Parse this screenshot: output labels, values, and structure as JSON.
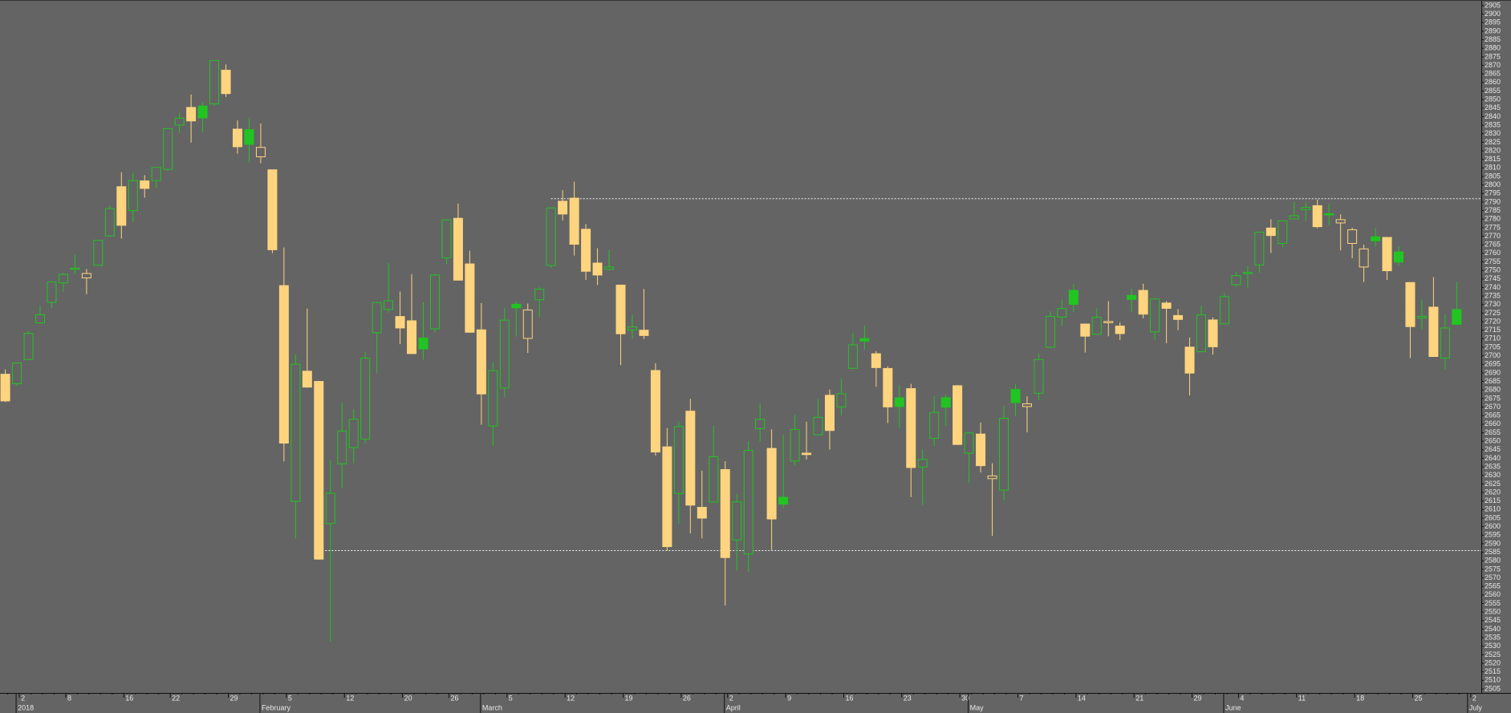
{
  "chart_data": {
    "type": "candlestick",
    "categories": [
      null,
      "2",
      null,
      null,
      null,
      "8",
      null,
      null,
      null,
      null,
      "16",
      null,
      null,
      null,
      "22",
      null,
      null,
      null,
      null,
      "29",
      null,
      null,
      null,
      null,
      "5",
      null,
      null,
      null,
      null,
      "12",
      null,
      null,
      null,
      null,
      "20",
      null,
      null,
      null,
      "26",
      null,
      null,
      null,
      null,
      "5",
      null,
      null,
      null,
      null,
      "12",
      null,
      null,
      null,
      null,
      "19",
      null,
      null,
      null,
      null,
      "26",
      null,
      null,
      null,
      "2",
      null,
      null,
      null,
      null,
      "9",
      null,
      null,
      null,
      null,
      "16",
      null,
      null,
      null,
      null,
      "23",
      null,
      null,
      null,
      null,
      "30",
      null,
      null,
      null,
      null,
      "7",
      null,
      null,
      null,
      null,
      "14",
      null,
      null,
      null,
      null,
      "21",
      null,
      null,
      null,
      null,
      "29",
      null,
      null,
      null,
      "4",
      null,
      null,
      null,
      null,
      "11",
      null,
      null,
      null,
      null,
      "18",
      null,
      null,
      null,
      null,
      "25",
      null,
      null,
      null,
      null,
      "2"
    ],
    "months": [
      {
        "label": "2018",
        "index": 1
      },
      {
        "label": "February",
        "index": 22
      },
      {
        "label": "March",
        "index": 41
      },
      {
        "label": "April",
        "index": 62
      },
      {
        "label": "May",
        "index": 83
      },
      {
        "label": "June",
        "index": 105
      },
      {
        "label": "July",
        "index": 126
      }
    ],
    "open": [
      2689.2,
      2683.7,
      2697.8,
      2719.3,
      2731.3,
      2742.7,
      2751.1,
      2745.6,
      2753.0,
      2770.2,
      2799.0,
      2785.0,
      2802.4,
      2802.6,
      2809.2,
      2835.1,
      2845.4,
      2846.2,
      2847.5,
      2867.2,
      2832.7,
      2832.4,
      2816.5,
      2808.9,
      2741.1,
      2614.8,
      2691.0,
      2685.0,
      2601.8,
      2636.8,
      2646.3,
      2651.2,
      2713.5,
      2727.1,
      2723.0,
      2720.5,
      2710.4,
      2715.8,
      2757.4,
      2780.5,
      2753.8,
      2715.2,
      2658.9,
      2681.1,
      2730.2,
      2710.2,
      2732.8,
      2752.9,
      2790.5,
      2792.3,
      2774.1,
      2754.3,
      2750.6,
      2741.4,
      2715.1,
      2715.0,
      2691.4,
      2646.7,
      2619.4,
      2667.6,
      2611.3,
      2614.4,
      2633.4,
      2592.2,
      2584.0,
      2657.4,
      2645.8,
      2617.2,
      2638.4,
      2643.0,
      2653.8,
      2676.9,
      2670.1,
      2692.7,
      2710.1,
      2701.2,
      2692.6,
      2675.4,
      2680.8,
      2634.9,
      2651.7,
      2675.5,
      2682.5,
      2643.0,
      2654.2,
      2628.1,
      2621.4,
      2680.3,
      2670.3,
      2678.1,
      2705.0,
      2722.7,
      2738.3,
      2718.6,
      2712.6,
      2719.7,
      2717.4,
      2735.4,
      2738.3,
      2714.0,
      2730.9,
      2723.6,
      2705.1,
      2702.4,
      2721.0,
      2718.7,
      2741.7,
      2748.5,
      2753.2,
      2774.8,
      2765.8,
      2780.2,
      2785.6,
      2787.9,
      2783.2,
      2777.8,
      2765.8,
      2752.0,
      2769.7,
      2769.3,
      2760.8,
      2742.9,
      2722.1,
      2728.5,
      2698.7,
      2727.1,
      null
    ],
    "high": [
      2692.1,
      2695.9,
      2714.4,
      2729.3,
      2743.5,
      2748.5,
      2759.1,
      2750.8,
      2767.6,
      2787.9,
      2807.5,
      2807.0,
      2805.8,
      2810.3,
      2833.0,
      2842.2,
      2853.0,
      2848.6,
      2872.9,
      2870.6,
      2837.8,
      2839.3,
      2836.0,
      2808.9,
      2763.4,
      2701.0,
      2727.7,
      2685.3,
      2638.7,
      2672.6,
      2668.8,
      2702.1,
      2731.5,
      2754.4,
      2737.6,
      2747.8,
      2731.3,
      2747.8,
      2780.0,
      2789.1,
      2761.5,
      2730.9,
      2696.3,
      2728.1,
      2732.1,
      2730.6,
      2740.5,
      2786.6,
      2797.0,
      2801.9,
      2777.1,
      2763.0,
      2761.9,
      2741.4,
      2724.2,
      2739.1,
      2695.7,
      2657.7,
      2661.4,
      2674.8,
      2632.7,
      2659.1,
      2638.3,
      2619.1,
      2649.9,
      2672.1,
      2656.9,
      2653.6,
      2665.4,
      2661.4,
      2674.7,
      2680.3,
      2686.5,
      2713.3,
      2717.5,
      2702.8,
      2693.9,
      2682.9,
      2683.6,
      2645.3,
      2676.5,
      2677.4,
      2682.9,
      2655.3,
      2660.9,
      2637.1,
      2670.9,
      2683.4,
      2676.3,
      2701.3,
      2726.1,
      2732.9,
      2742.1,
      2718.6,
      2727.8,
      2732.0,
      2719.5,
      2739.2,
      2742.2,
      2733.3,
      2732.0,
      2727.4,
      2710.7,
      2729.3,
      2722.5,
      2736.9,
      2749.2,
      2752.6,
      2772.4,
      2779.9,
      2779.4,
      2790.2,
      2789.8,
      2791.5,
      2789.1,
      2782.8,
      2775.0,
      2765.1,
      2774.9,
      2769.3,
      2764.2,
      2742.9,
      2732.9,
      2746.1,
      2724.3,
      2743.3,
      null
    ],
    "low": [
      2673.0,
      2682.4,
      2697.8,
      2719.1,
      2727.9,
      2737.6,
      2747.9,
      2736.1,
      2752.8,
      2769.6,
      2768.6,
      2778.4,
      2792.6,
      2798.1,
      2808.1,
      2830.6,
      2824.8,
      2830.9,
      2846.2,
      2851.5,
      2818.3,
      2813.0,
      2812.7,
      2760.0,
      2638.2,
      2593.1,
      2681.3,
      2580.6,
      2532.7,
      2622.5,
      2637.1,
      2648.9,
      2689.8,
      2725.1,
      2706.8,
      2701.3,
      2697.8,
      2713.7,
      2753.8,
      2744.2,
      2713.5,
      2659.7,
      2647.3,
      2675.8,
      2711.3,
      2701.7,
      2722.7,
      2751.5,
      2779.3,
      2758.7,
      2744.4,
      2741.5,
      2750.0,
      2694.6,
      2710.1,
      2709.8,
      2641.6,
      2585.9,
      2601.8,
      2596.1,
      2593.1,
      2614.4,
      2553.8,
      2574.5,
      2573.6,
      2649.6,
      2586.3,
      2610.8,
      2635.8,
      2639.3,
      2653.8,
      2645.1,
      2665.2,
      2692.1,
      2703.6,
      2681.9,
      2660.6,
      2658.0,
      2617.3,
      2612.7,
      2647.2,
      2659.0,
      2648.0,
      2625.4,
      2631.7,
      2594.6,
      2615.3,
      2664.7,
      2655.2,
      2674.1,
      2704.5,
      2717.4,
      2725.5,
      2701.9,
      2712.2,
      2711.4,
      2709.2,
      2725.7,
      2721.9,
      2709.5,
      2707.4,
      2715.0,
      2676.8,
      2702.4,
      2700.7,
      2718.7,
      2740.5,
      2739.5,
      2748.5,
      2760.2,
      2763.6,
      2780.2,
      2778.8,
      2774.6,
      2776.5,
      2761.7,
      2757.1,
      2743.2,
      2763.9,
      2744.4,
      2752.7,
      2698.7,
      2715.6,
      2699.4,
      2692.0,
      2718.0,
      null
    ],
    "close": [
      2673.6,
      2695.8,
      2713.1,
      2724.0,
      2743.2,
      2747.7,
      2751.3,
      2748.2,
      2767.6,
      2786.2,
      2776.4,
      2802.6,
      2798.0,
      2810.3,
      2833.0,
      2839.1,
      2837.5,
      2839.3,
      2872.9,
      2853.5,
      2822.4,
      2823.8,
      2822.0,
      2762.1,
      2648.9,
      2695.1,
      2681.7,
      2581.0,
      2619.6,
      2656.0,
      2662.9,
      2698.6,
      2731.2,
      2732.2,
      2716.3,
      2701.3,
      2704.0,
      2747.3,
      2779.6,
      2744.3,
      2713.8,
      2677.7,
      2691.3,
      2720.9,
      2728.1,
      2726.8,
      2739.0,
      2786.6,
      2783.0,
      2765.3,
      2749.5,
      2747.3,
      2752.0,
      2712.9,
      2716.9,
      2711.9,
      2643.7,
      2588.3,
      2658.6,
      2612.6,
      2605.0,
      2640.9,
      2581.9,
      2614.5,
      2644.7,
      2662.8,
      2604.5,
      2613.2,
      2656.9,
      2642.2,
      2664.0,
      2656.3,
      2677.8,
      2706.4,
      2708.6,
      2693.1,
      2670.1,
      2670.3,
      2634.6,
      2639.4,
      2666.9,
      2669.9,
      2648.1,
      2654.8,
      2635.7,
      2629.7,
      2663.4,
      2672.6,
      2671.9,
      2697.8,
      2723.1,
      2727.7,
      2730.1,
      2711.5,
      2722.5,
      2720.1,
      2713.0,
      2733.0,
      2724.4,
      2733.3,
      2727.8,
      2721.3,
      2689.9,
      2724.0,
      2705.3,
      2734.6,
      2746.9,
      2748.8,
      2772.4,
      2770.4,
      2779.0,
      2782.0,
      2786.9,
      2775.6,
      2782.5,
      2779.7,
      2773.8,
      2762.6,
      2767.3,
      2749.8,
      2754.9,
      2717.1,
      2723.1,
      2699.6,
      2716.3,
      2718.4,
      null
    ],
    "up_color": "#22c422",
    "down_color": "#ffd47f",
    "hlines": [
      {
        "value": 2792,
        "from": 47
      },
      {
        "value": 2586,
        "from": 27
      }
    ],
    "ylim": [
      2505,
      2905
    ],
    "yticks": [
      2505,
      2510,
      2515,
      2520,
      2525,
      2530,
      2535,
      2540,
      2545,
      2550,
      2555,
      2560,
      2565,
      2570,
      2575,
      2580,
      2585,
      2590,
      2595,
      2600,
      2605,
      2610,
      2615,
      2620,
      2625,
      2630,
      2635,
      2640,
      2645,
      2650,
      2655,
      2660,
      2665,
      2670,
      2675,
      2680,
      2685,
      2690,
      2695,
      2700,
      2705,
      2710,
      2715,
      2720,
      2725,
      2730,
      2735,
      2740,
      2745,
      2750,
      2755,
      2760,
      2765,
      2770,
      2775,
      2780,
      2785,
      2790,
      2795,
      2800,
      2805,
      2810,
      2815,
      2820,
      2825,
      2830,
      2835,
      2840,
      2845,
      2850,
      2855,
      2860,
      2865,
      2870,
      2875,
      2880,
      2885,
      2890,
      2895,
      2900,
      2905
    ]
  }
}
